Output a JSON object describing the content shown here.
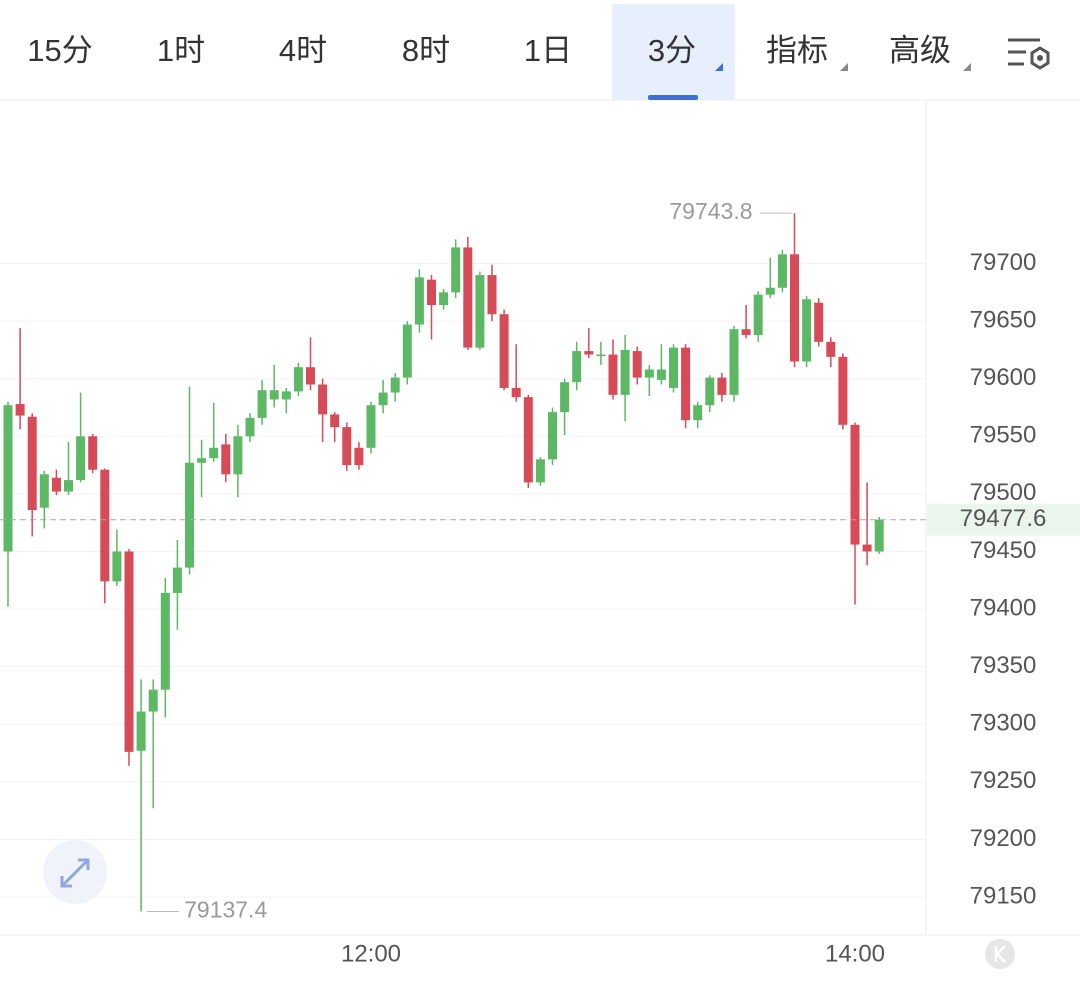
{
  "tabs": [
    "15分",
    "1时",
    "4时",
    "8时",
    "1日",
    "3分",
    "指标",
    "高级"
  ],
  "active_tab": 5,
  "chart_data": {
    "type": "candlestick",
    "categories": [
      null,
      null,
      null,
      null,
      null,
      null,
      null,
      null,
      null,
      null,
      null,
      null,
      null,
      null,
      null,
      null,
      null,
      null,
      null,
      null,
      null,
      null,
      null,
      null,
      null,
      null,
      null,
      null,
      null,
      null,
      "12:00",
      null,
      null,
      null,
      null,
      null,
      null,
      null,
      null,
      null,
      null,
      null,
      null,
      null,
      null,
      null,
      null,
      null,
      null,
      null,
      null,
      null,
      null,
      null,
      null,
      null,
      null,
      null,
      null,
      null,
      null,
      null,
      null,
      null,
      null,
      null,
      null,
      null,
      null,
      null,
      "14:00",
      null,
      null
    ],
    "open": [
      79450,
      79578,
      79567,
      79488,
      79514,
      79502,
      79512,
      79550,
      79521,
      79424,
      79450,
      79277,
      79311,
      79330,
      79414,
      79436,
      79527,
      79531,
      79543,
      79517,
      79550,
      79566,
      79582,
      79582,
      79589,
      79610,
      79595,
      79569,
      79558,
      79540,
      79540,
      79577,
      79588,
      79601,
      79647,
      79686,
      79664,
      79675,
      79714,
      79627,
      79690,
      79656,
      79592,
      79584,
      79510,
      79530,
      79571,
      79597,
      79624,
      79620,
      79621,
      79586,
      79624,
      79601,
      79599,
      79592,
      79627,
      79564,
      79577,
      79601,
      79586,
      79643,
      79638,
      79673,
      79679,
      79708,
      79615,
      79666,
      79632,
      79619,
      79560,
      79456,
      79450
    ],
    "high": [
      79580,
      79644,
      79570,
      79520,
      79521,
      79545,
      79588,
      79552,
      79522,
      79469,
      79452,
      79339,
      79339,
      79427,
      79460,
      79593,
      79547,
      79579,
      79552,
      79560,
      79570,
      79599,
      79612,
      79592,
      79614,
      79636,
      79600,
      79571,
      79562,
      79545,
      79580,
      79599,
      79605,
      79650,
      79695,
      79690,
      79678,
      79721,
      79723,
      79693,
      79699,
      79660,
      79630,
      79586,
      79532,
      79575,
      79600,
      79632,
      79644,
      79632,
      79634,
      79638,
      79628,
      79612,
      79630,
      79630,
      79630,
      79580,
      79603,
      79605,
      79646,
      79664,
      79676,
      79705,
      79712,
      79743.8,
      79672,
      79670,
      79636,
      79622,
      79562,
      79510,
      79480
    ],
    "low": [
      79402,
      79556,
      79463,
      79470,
      79499,
      79499,
      79510,
      79518,
      79405,
      79420,
      79264,
      79137.4,
      79227,
      79306,
      79382,
      79430,
      79497,
      79528,
      79510,
      79497,
      79545,
      79560,
      79575,
      79570,
      79585,
      79590,
      79545,
      79545,
      79520,
      79521,
      79535,
      79570,
      79580,
      79595,
      79640,
      79634,
      79660,
      79670,
      79625,
      79625,
      79650,
      79590,
      79580,
      79505,
      79507,
      79525,
      79551,
      79590,
      79618,
      79612,
      79582,
      79563,
      79595,
      79585,
      79595,
      79588,
      79557,
      79557,
      79571,
      79580,
      79580,
      79635,
      79632,
      79670,
      79675,
      79610,
      79610,
      79628,
      79610,
      79556,
      79404,
      79438,
      79448
    ],
    "close": [
      79577,
      79568,
      79486,
      79517,
      79502,
      79512,
      79550,
      79521,
      79424,
      79450,
      79276,
      79311,
      79330,
      79414,
      79436,
      79527,
      79531,
      79540,
      79517,
      79550,
      79566,
      79590,
      79590,
      79589,
      79610,
      79595,
      79569,
      79558,
      79525,
      79525,
      79577,
      79588,
      79601,
      79647,
      79688,
      79664,
      79675,
      79714,
      79627,
      79690,
      79656,
      79592,
      79584,
      79510,
      79530,
      79571,
      79597,
      79624,
      79621,
      79621,
      79586,
      79625,
      79601,
      79608,
      79608,
      79627,
      79564,
      79577,
      79601,
      79586,
      79643,
      79638,
      79673,
      79679,
      79708,
      79615,
      79669,
      79632,
      79619,
      79560,
      79456,
      79450,
      79477.6
    ],
    "up_color": "#5cb865",
    "down_color": "#d64b57",
    "ylim": [
      79117,
      79842
    ],
    "yticks": [
      79150,
      79200,
      79250,
      79300,
      79350,
      79400,
      79450,
      79500,
      79550,
      79600,
      79650,
      79700
    ],
    "grid": true
  }
}
